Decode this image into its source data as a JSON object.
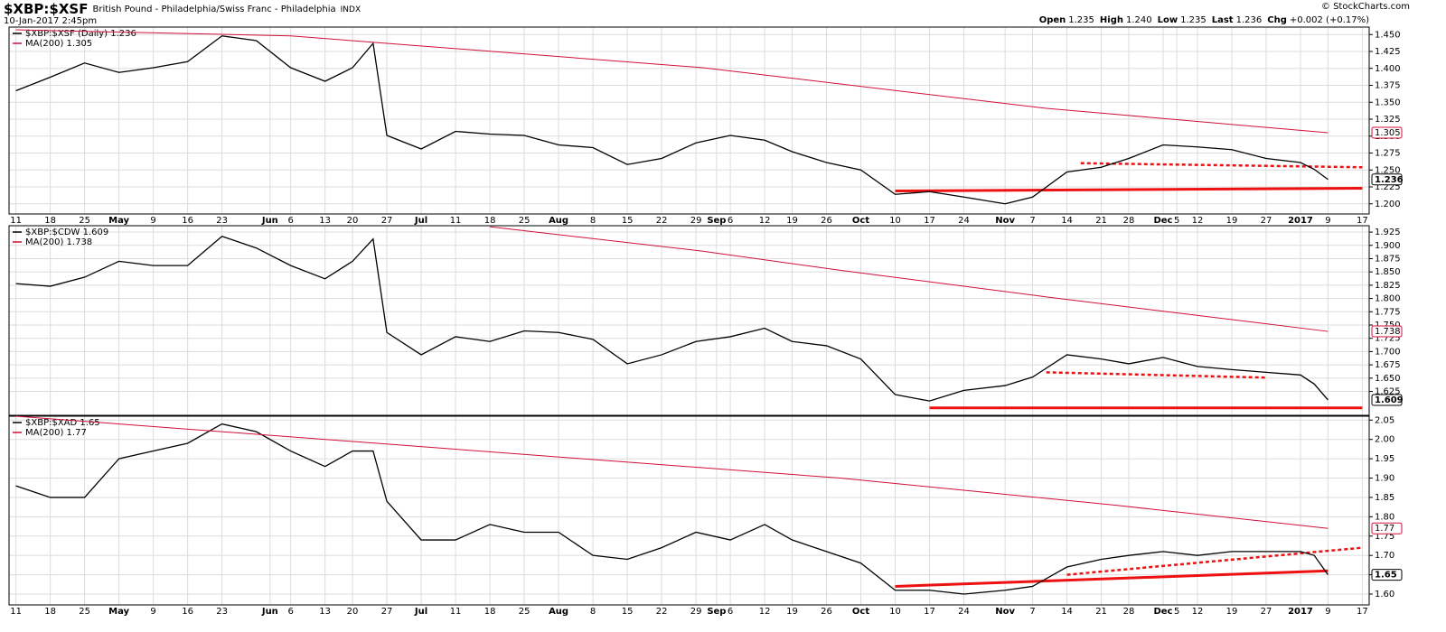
{
  "header": {
    "symbol": "$XBP:$XSF",
    "description": "British Pound - Philadelphia/Swiss Franc - Philadelphia",
    "exchange": "INDX",
    "date": "10-Jan-2017 2:45pm",
    "quote": [
      {
        "label": "Open",
        "value": "1.235"
      },
      {
        "label": "High",
        "value": "1.240"
      },
      {
        "label": "Low",
        "value": "1.235"
      },
      {
        "label": "Last",
        "value": "1.236"
      },
      {
        "label": "Chg",
        "value": "+0.002 (+0.17%)"
      }
    ],
    "credit": "© StockCharts.com"
  },
  "x_axis": {
    "xlim": [
      -1,
      197
    ],
    "xticks": [
      {
        "value": 0,
        "label": "11"
      },
      {
        "value": 5,
        "label": "18"
      },
      {
        "value": 10,
        "label": "25"
      },
      {
        "value": 15,
        "label": "May"
      },
      {
        "value": 20,
        "label": "9"
      },
      {
        "value": 25,
        "label": "16"
      },
      {
        "value": 30,
        "label": "23"
      },
      {
        "value": 37,
        "label": "Jun"
      },
      {
        "value": 40,
        "label": "6"
      },
      {
        "value": 45,
        "label": "13"
      },
      {
        "value": 49,
        "label": "20"
      },
      {
        "value": 54,
        "label": "27"
      },
      {
        "value": 59,
        "label": "Jul"
      },
      {
        "value": 64,
        "label": "11"
      },
      {
        "value": 69,
        "label": "18"
      },
      {
        "value": 74,
        "label": "25"
      },
      {
        "value": 79,
        "label": "Aug"
      },
      {
        "value": 84,
        "label": "8"
      },
      {
        "value": 89,
        "label": "15"
      },
      {
        "value": 94,
        "label": "22"
      },
      {
        "value": 99,
        "label": "29"
      },
      {
        "value": 102,
        "label": "Sep"
      },
      {
        "value": 104,
        "label": "6"
      },
      {
        "value": 109,
        "label": "12"
      },
      {
        "value": 113,
        "label": "19"
      },
      {
        "value": 118,
        "label": "26"
      },
      {
        "value": 123,
        "label": "Oct"
      },
      {
        "value": 128,
        "label": "10"
      },
      {
        "value": 133,
        "label": "17"
      },
      {
        "value": 138,
        "label": "24"
      },
      {
        "value": 144,
        "label": "Nov"
      },
      {
        "value": 148,
        "label": "7"
      },
      {
        "value": 153,
        "label": "14"
      },
      {
        "value": 158,
        "label": "21"
      },
      {
        "value": 162,
        "label": "28"
      },
      {
        "value": 167,
        "label": "Dec"
      },
      {
        "value": 169,
        "label": "5"
      },
      {
        "value": 172,
        "label": "12"
      },
      {
        "value": 177,
        "label": "19"
      },
      {
        "value": 182,
        "label": "27"
      },
      {
        "value": 187,
        "label": "2017"
      },
      {
        "value": 191,
        "label": "9"
      },
      {
        "value": 196,
        "label": "17"
      }
    ]
  },
  "chart_data": [
    {
      "type": "line",
      "show_xtick_labels": true,
      "grid": true,
      "ylim": [
        1.185,
        1.461
      ],
      "yticks": [
        {
          "value": 1.2,
          "label": "1.200"
        },
        {
          "value": 1.225,
          "label": "1.225"
        },
        {
          "value": 1.25,
          "label": "1.250"
        },
        {
          "value": 1.275,
          "label": "1.275"
        },
        {
          "value": 1.3,
          "label": "1.300"
        },
        {
          "value": 1.325,
          "label": "1.325"
        },
        {
          "value": 1.35,
          "label": "1.350"
        },
        {
          "value": 1.375,
          "label": "1.375"
        },
        {
          "value": 1.4,
          "label": "1.400"
        },
        {
          "value": 1.425,
          "label": "1.425"
        },
        {
          "value": 1.45,
          "label": "1.450"
        }
      ],
      "series": [
        {
          "name": "$XBP:$XSF (Daily) 1.236",
          "color": "#000000",
          "last_label": "1.236",
          "x": [
            0,
            5,
            10,
            15,
            20,
            25,
            30,
            35,
            40,
            45,
            49,
            52,
            54,
            59,
            64,
            69,
            74,
            79,
            84,
            89,
            94,
            99,
            104,
            109,
            113,
            118,
            123,
            128,
            133,
            138,
            144,
            148,
            153,
            158,
            162,
            167,
            172,
            177,
            182,
            187,
            189,
            191
          ],
          "values": [
            1.367,
            1.387,
            1.408,
            1.394,
            1.401,
            1.41,
            1.448,
            1.441,
            1.401,
            1.381,
            1.401,
            1.437,
            1.301,
            1.281,
            1.307,
            1.303,
            1.301,
            1.287,
            1.283,
            1.258,
            1.267,
            1.29,
            1.301,
            1.294,
            1.277,
            1.261,
            1.25,
            1.214,
            1.218,
            1.21,
            1.2,
            1.21,
            1.247,
            1.254,
            1.267,
            1.287,
            1.284,
            1.28,
            1.267,
            1.261,
            1.251,
            1.236
          ]
        },
        {
          "name": "MA(200) 1.305",
          "color": "#d0103a",
          "last_label": "1.305",
          "x": [
            0,
            40,
            100,
            150,
            191
          ],
          "values": [
            1.457,
            1.448,
            1.401,
            1.341,
            1.305
          ]
        }
      ],
      "trendlines": [
        {
          "x": [
            128,
            196
          ],
          "values": [
            1.219,
            1.223
          ],
          "color": "#ee1111",
          "dashed": false
        },
        {
          "x": [
            155,
            196
          ],
          "values": [
            1.26,
            1.254
          ],
          "color": "#ee1111",
          "dashed": true
        }
      ]
    },
    {
      "type": "line",
      "show_xtick_labels": false,
      "grid": true,
      "ylim": [
        1.58,
        1.937
      ],
      "yticks": [
        {
          "value": 1.625,
          "label": "1.625"
        },
        {
          "value": 1.65,
          "label": "1.650"
        },
        {
          "value": 1.675,
          "label": "1.675"
        },
        {
          "value": 1.7,
          "label": "1.700"
        },
        {
          "value": 1.725,
          "label": "1.725"
        },
        {
          "value": 1.75,
          "label": "1.750"
        },
        {
          "value": 1.775,
          "label": "1.775"
        },
        {
          "value": 1.8,
          "label": "1.800"
        },
        {
          "value": 1.825,
          "label": "1.825"
        },
        {
          "value": 1.85,
          "label": "1.850"
        },
        {
          "value": 1.875,
          "label": "1.875"
        },
        {
          "value": 1.9,
          "label": "1.900"
        },
        {
          "value": 1.925,
          "label": "1.925"
        }
      ],
      "series": [
        {
          "name": "$XBP:$CDW 1.609",
          "color": "#000000",
          "last_label": "1.609",
          "x": [
            0,
            5,
            10,
            15,
            20,
            25,
            30,
            35,
            40,
            45,
            49,
            52,
            54,
            59,
            64,
            69,
            74,
            79,
            84,
            89,
            94,
            99,
            104,
            109,
            113,
            118,
            123,
            128,
            133,
            138,
            144,
            148,
            153,
            158,
            162,
            167,
            172,
            177,
            182,
            187,
            189,
            191
          ],
          "values": [
            1.828,
            1.823,
            1.84,
            1.87,
            1.862,
            1.862,
            1.917,
            1.895,
            1.862,
            1.837,
            1.87,
            1.912,
            1.736,
            1.694,
            1.728,
            1.719,
            1.739,
            1.736,
            1.723,
            1.677,
            1.694,
            1.719,
            1.728,
            1.744,
            1.719,
            1.711,
            1.686,
            1.619,
            1.607,
            1.627,
            1.636,
            1.652,
            1.694,
            1.686,
            1.677,
            1.689,
            1.672,
            1.666,
            1.661,
            1.656,
            1.639,
            1.609
          ]
        },
        {
          "name": "MA(200) 1.738",
          "color": "#d0103a",
          "last_label": "1.738",
          "x": [
            69,
            100,
            120,
            150,
            191
          ],
          "values": [
            1.935,
            1.889,
            1.853,
            1.803,
            1.738
          ]
        }
      ],
      "trendlines": [
        {
          "x": [
            133,
            196
          ],
          "values": [
            1.594,
            1.594
          ],
          "color": "#ee1111",
          "dashed": false
        },
        {
          "x": [
            150,
            182
          ],
          "values": [
            1.661,
            1.651
          ],
          "color": "#ee1111",
          "dashed": true
        }
      ]
    },
    {
      "type": "line",
      "show_xtick_labels": true,
      "grid": true,
      "ylim": [
        1.572,
        2.06
      ],
      "yticks": [
        {
          "value": 1.6,
          "label": "1.60"
        },
        {
          "value": 1.65,
          "label": "1.65"
        },
        {
          "value": 1.7,
          "label": "1.70"
        },
        {
          "value": 1.75,
          "label": "1.75"
        },
        {
          "value": 1.8,
          "label": "1.80"
        },
        {
          "value": 1.85,
          "label": "1.85"
        },
        {
          "value": 1.9,
          "label": "1.90"
        },
        {
          "value": 1.95,
          "label": "1.95"
        },
        {
          "value": 2,
          "label": "2.00"
        },
        {
          "value": 2.05,
          "label": "2.05"
        }
      ],
      "series": [
        {
          "name": "$XBP:$XAD 1.65",
          "color": "#000000",
          "last_label": "1.65",
          "x": [
            0,
            5,
            10,
            15,
            20,
            25,
            30,
            35,
            40,
            45,
            49,
            52,
            54,
            59,
            64,
            69,
            74,
            79,
            84,
            89,
            94,
            99,
            104,
            109,
            113,
            118,
            123,
            128,
            133,
            138,
            144,
            148,
            153,
            158,
            162,
            167,
            172,
            177,
            182,
            187,
            189,
            191
          ],
          "values": [
            1.88,
            1.85,
            1.85,
            1.95,
            1.97,
            1.99,
            2.04,
            2.02,
            1.97,
            1.93,
            1.97,
            1.97,
            1.84,
            1.74,
            1.74,
            1.78,
            1.76,
            1.76,
            1.7,
            1.69,
            1.72,
            1.76,
            1.74,
            1.78,
            1.74,
            1.71,
            1.68,
            1.61,
            1.61,
            1.6,
            1.61,
            1.62,
            1.67,
            1.69,
            1.7,
            1.71,
            1.7,
            1.71,
            1.71,
            1.71,
            1.7,
            1.65
          ]
        },
        {
          "name": "MA(200) 1.77",
          "color": "#d0103a",
          "last_label": "1.77",
          "x": [
            0,
            60,
            120,
            160,
            191
          ],
          "values": [
            2.06,
            1.98,
            1.9,
            1.83,
            1.77
          ]
        }
      ],
      "trendlines": [
        {
          "x": [
            128,
            191
          ],
          "values": [
            1.62,
            1.66
          ],
          "color": "#ee1111",
          "dashed": false
        },
        {
          "x": [
            153,
            196
          ],
          "values": [
            1.65,
            1.72
          ],
          "color": "#ee1111",
          "dashed": true
        }
      ]
    }
  ]
}
